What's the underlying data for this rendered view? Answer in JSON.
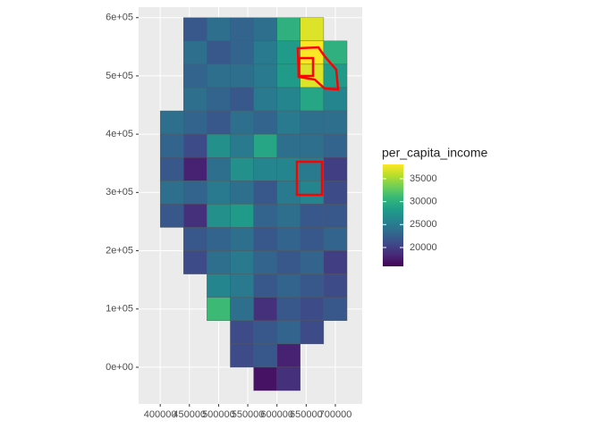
{
  "chart_data": {
    "type": "tile",
    "xlim": [
      363000,
      746000
    ],
    "ylim": [
      -63000,
      618000
    ],
    "xticks": [
      400000,
      450000,
      500000,
      550000,
      600000,
      650000,
      700000
    ],
    "yticks": [
      {
        "value": 0,
        "label": "0e+00"
      },
      {
        "value": 100000,
        "label": "1e+05"
      },
      {
        "value": 200000,
        "label": "2e+05"
      },
      {
        "value": 300000,
        "label": "3e+05"
      },
      {
        "value": 400000,
        "label": "4e+05"
      },
      {
        "value": 500000,
        "label": "5e+05"
      },
      {
        "value": 600000,
        "label": "6e+05"
      }
    ],
    "grid": true,
    "fill_scale": {
      "title": "per_capita_income",
      "limits": [
        15900,
        38100
      ],
      "ticks": [
        20000,
        25000,
        30000,
        35000
      ]
    },
    "rows": [
      {
        "y": 580000,
        "x": [
          460000,
          500000,
          540000,
          580000,
          620000,
          660000
        ],
        "values": [
          22000,
          24000,
          23000,
          24000,
          30000,
          37000
        ]
      },
      {
        "y": 540000,
        "x": [
          460000,
          500000,
          540000,
          580000,
          620000,
          660000,
          700000
        ],
        "values": [
          24000,
          22000,
          23000,
          25000,
          28000,
          38000,
          30000
        ]
      },
      {
        "y": 500000,
        "x": [
          460000,
          500000,
          540000,
          580000,
          620000,
          660000,
          700000
        ],
        "values": [
          23000,
          24000,
          24000,
          25000,
          28000,
          37000,
          28000
        ]
      },
      {
        "y": 460000,
        "x": [
          460000,
          500000,
          540000,
          580000,
          620000,
          660000,
          700000
        ],
        "values": [
          24000,
          23000,
          22000,
          25000,
          26000,
          29000,
          26000
        ]
      },
      {
        "y": 420000,
        "x": [
          420000,
          460000,
          500000,
          540000,
          580000,
          620000,
          660000,
          700000
        ],
        "values": [
          24000,
          23000,
          22000,
          24000,
          23000,
          25000,
          24000,
          24000
        ]
      },
      {
        "y": 380000,
        "x": [
          420000,
          460000,
          500000,
          540000,
          580000,
          620000,
          660000,
          700000
        ],
        "values": [
          23000,
          21000,
          27000,
          25000,
          29000,
          24000,
          24000,
          23000
        ]
      },
      {
        "y": 340000,
        "x": [
          420000,
          460000,
          500000,
          540000,
          580000,
          620000,
          660000,
          700000
        ],
        "values": [
          22000,
          18000,
          24000,
          27000,
          26000,
          26000,
          25000,
          20000
        ]
      },
      {
        "y": 300000,
        "x": [
          420000,
          460000,
          500000,
          540000,
          580000,
          620000,
          660000,
          700000
        ],
        "values": [
          24000,
          23000,
          25000,
          24000,
          22000,
          25000,
          26000,
          21000
        ]
      },
      {
        "y": 260000,
        "x": [
          420000,
          460000,
          500000,
          540000,
          580000,
          620000,
          660000,
          700000
        ],
        "values": [
          22000,
          19000,
          27000,
          28000,
          23000,
          24000,
          22000,
          22000
        ]
      },
      {
        "y": 220000,
        "x": [
          460000,
          500000,
          540000,
          580000,
          620000,
          660000,
          700000
        ],
        "values": [
          22000,
          23000,
          24000,
          22000,
          23000,
          22000,
          23000
        ]
      },
      {
        "y": 180000,
        "x": [
          460000,
          500000,
          540000,
          580000,
          620000,
          660000,
          700000
        ],
        "values": [
          21000,
          24000,
          25000,
          23000,
          22000,
          23000,
          20000
        ]
      },
      {
        "y": 140000,
        "x": [
          500000,
          540000,
          580000,
          620000,
          660000,
          700000
        ],
        "values": [
          26000,
          25000,
          22000,
          23000,
          22000,
          21000
        ]
      },
      {
        "y": 100000,
        "x": [
          500000,
          540000,
          580000,
          620000,
          660000,
          700000
        ],
        "values": [
          31000,
          24000,
          19000,
          22000,
          21000,
          22000
        ]
      },
      {
        "y": 60000,
        "x": [
          540000,
          580000,
          620000,
          660000
        ],
        "values": [
          21000,
          22000,
          23000,
          21000
        ]
      },
      {
        "y": 20000,
        "x": [
          540000,
          580000,
          620000
        ],
        "values": [
          21000,
          22000,
          18000
        ]
      },
      {
        "y": -20000,
        "x": [
          580000,
          620000
        ],
        "values": [
          17000,
          19000
        ]
      }
    ]
  }
}
